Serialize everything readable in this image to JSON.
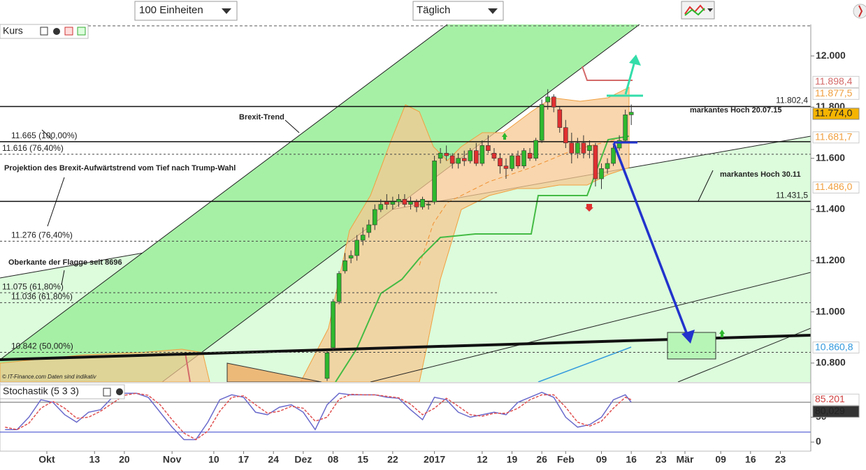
{
  "toolbar": {
    "units": "100 Einheiten",
    "period": "Täglich"
  },
  "x_axis": {
    "xlim": [
      -7.85,
      128.1
    ],
    "xticks": [
      {
        "value": 0,
        "label": "Okt"
      },
      {
        "value": 8,
        "label": "13"
      },
      {
        "value": 13,
        "label": "20"
      },
      {
        "value": 21,
        "label": "Nov"
      },
      {
        "value": 28,
        "label": "10"
      },
      {
        "value": 33,
        "label": "17"
      },
      {
        "value": 38,
        "label": "24"
      },
      {
        "value": 43,
        "label": "Dez"
      },
      {
        "value": 48,
        "label": "08"
      },
      {
        "value": 53,
        "label": "15"
      },
      {
        "value": 58,
        "label": "22"
      },
      {
        "value": 65,
        "label": "2017"
      },
      {
        "value": 73,
        "label": "12"
      },
      {
        "value": 78,
        "label": "19"
      },
      {
        "value": 83,
        "label": "26"
      },
      {
        "value": 87,
        "label": "Feb"
      },
      {
        "value": 93,
        "label": "09"
      },
      {
        "value": 98,
        "label": "16"
      },
      {
        "value": 103,
        "label": "23"
      },
      {
        "value": 107,
        "label": "Mär"
      },
      {
        "value": 113,
        "label": "09"
      },
      {
        "value": 118,
        "label": "16"
      },
      {
        "value": 123,
        "label": "23"
      }
    ]
  },
  "price_panel": {
    "title": "Kurs",
    "ylim": [
      10726,
      12123
    ],
    "yticks": [
      {
        "value": 10800,
        "label": "10.800"
      },
      {
        "value": 11000,
        "label": "11.000"
      },
      {
        "value": 11200,
        "label": "11.200"
      },
      {
        "value": 11400,
        "label": "11.400"
      },
      {
        "value": 11600,
        "label": "11.600"
      },
      {
        "value": 11800,
        "label": "11.800"
      },
      {
        "value": 12000,
        "label": "12.000"
      }
    ],
    "up_color": "#2eb82e",
    "down_color": "#e03030",
    "x": [
      47,
      48,
      49,
      50,
      51,
      52,
      53,
      54,
      55,
      56,
      57,
      58,
      59,
      60,
      61,
      62,
      63,
      64,
      65,
      66,
      67,
      68,
      69,
      70,
      71,
      72,
      73,
      74,
      75,
      76,
      77,
      78,
      79,
      80,
      81,
      82,
      83,
      84,
      85,
      86,
      87,
      88,
      89,
      90,
      91,
      92,
      93,
      94,
      95,
      96,
      97,
      98
    ],
    "ohlc": [
      [
        10740,
        10850,
        10730,
        10840
      ],
      [
        10860,
        11050,
        10850,
        11040
      ],
      [
        11040,
        11160,
        11030,
        11150
      ],
      [
        11160,
        11230,
        11150,
        11200
      ],
      [
        11210,
        11240,
        11190,
        11220
      ],
      [
        11220,
        11300,
        11200,
        11280
      ],
      [
        11280,
        11330,
        11260,
        11300
      ],
      [
        11310,
        11360,
        11290,
        11340
      ],
      [
        11340,
        11420,
        11320,
        11400
      ],
      [
        11400,
        11440,
        11390,
        11420
      ],
      [
        11430,
        11460,
        11400,
        11420
      ],
      [
        11420,
        11450,
        11400,
        11430
      ],
      [
        11430,
        11460,
        11410,
        11440
      ],
      [
        11440,
        11460,
        11410,
        11420
      ],
      [
        11420,
        11450,
        11400,
        11430
      ],
      [
        11430,
        11440,
        11390,
        11410
      ],
      [
        11410,
        11450,
        11400,
        11440
      ],
      [
        11420,
        11430,
        11400,
        11420
      ],
      [
        11430,
        11610,
        11420,
        11590
      ],
      [
        11600,
        11640,
        11580,
        11620
      ],
      [
        11620,
        11650,
        11590,
        11610
      ],
      [
        11610,
        11620,
        11560,
        11580
      ],
      [
        11580,
        11620,
        11560,
        11600
      ],
      [
        11600,
        11630,
        11570,
        11590
      ],
      [
        11590,
        11640,
        11580,
        11630
      ],
      [
        11630,
        11660,
        11570,
        11580
      ],
      [
        11580,
        11670,
        11570,
        11650
      ],
      [
        11650,
        11690,
        11620,
        11630
      ],
      [
        11620,
        11640,
        11590,
        11600
      ],
      [
        11600,
        11620,
        11540,
        11570
      ],
      [
        11570,
        11600,
        11520,
        11560
      ],
      [
        11560,
        11620,
        11550,
        11610
      ],
      [
        11610,
        11630,
        11560,
        11570
      ],
      [
        11570,
        11640,
        11560,
        11630
      ],
      [
        11620,
        11640,
        11590,
        11600
      ],
      [
        11600,
        11680,
        11590,
        11670
      ],
      [
        11670,
        11830,
        11660,
        11810
      ],
      [
        11820,
        11870,
        11790,
        11840
      ],
      [
        11840,
        11850,
        11780,
        11800
      ],
      [
        11790,
        11800,
        11700,
        11720
      ],
      [
        11720,
        11750,
        11640,
        11660
      ],
      [
        11660,
        11700,
        11580,
        11620
      ],
      [
        11620,
        11680,
        11600,
        11660
      ],
      [
        11660,
        11690,
        11600,
        11620
      ],
      [
        11630,
        11670,
        11600,
        11650
      ],
      [
        11650,
        11660,
        11490,
        11520
      ],
      [
        11520,
        11580,
        11480,
        11560
      ],
      [
        11560,
        11600,
        11540,
        11580
      ],
      [
        11580,
        11650,
        11570,
        11640
      ],
      [
        11640,
        11690,
        11630,
        11670
      ],
      [
        11670,
        11790,
        11660,
        11770
      ],
      [
        11770,
        11810,
        11730,
        11780
      ]
    ],
    "levels": [
      {
        "value": 11802.4,
        "label": "11.802,4",
        "align": "right",
        "style": "solid"
      },
      {
        "value": 11431.5,
        "label": "11.431,5",
        "align": "right",
        "style": "solid"
      },
      {
        "value": 11665,
        "label": "11.665 (100,00%)",
        "align": "left",
        "style": "solid"
      },
      {
        "value": 11616,
        "label": "11.616 (76,40%)",
        "align": "left",
        "style": "dashed"
      },
      {
        "value": 11276,
        "label": "11.276 (76,40%)",
        "align": "left",
        "style": "dashed"
      },
      {
        "value": 11075,
        "label": "11.075 (61,80%)",
        "align": "left",
        "style": "dashed"
      },
      {
        "value": 11036,
        "label": "11.036 (61,80%)",
        "align": "left",
        "style": "dashed"
      },
      {
        "value": 10842,
        "label": "10.842 (50,00%)",
        "align": "left",
        "style": "dashed"
      }
    ],
    "price_labels": [
      {
        "value": 11898.4,
        "label": "11.898,4",
        "color": "#d46a6a",
        "filled": false
      },
      {
        "value": 11877.5,
        "label": "11.877,5",
        "color": "#f0a040",
        "filled": false
      },
      {
        "value": 11774.0,
        "label": "11.774,0",
        "color": "#f5b400",
        "filled": true
      },
      {
        "value": 11681.7,
        "label": "11.681,7",
        "color": "#f0a040",
        "filled": false
      },
      {
        "value": 11486.0,
        "label": "11.486,0",
        "color": "#f0a040",
        "filled": false
      },
      {
        "value": 10860.8,
        "label": "10.860,8",
        "color": "#3399dd",
        "filled": false
      }
    ],
    "annotations": {
      "brexit_trend": "Brexit-Trend",
      "high_2015": "markantes Hoch 20.07.15",
      "projection": "Projektion des  Brexit-Aufwärtstrend vom Tief nach Trump-Wahl",
      "high_nov": "markantes Hoch 30.11",
      "flag": "Oberkante der Flagge seit 8696"
    },
    "copyright": "© IT-Finance.com  Daten sind indikativ"
  },
  "stoch_panel": {
    "title": "Stochastik (5 3 3)",
    "ylim": [
      -16.8,
      116.5
    ],
    "yticks": [
      0,
      50
    ],
    "levels": [
      80,
      20
    ],
    "x": [
      -7,
      -5,
      -3,
      -1,
      1,
      3,
      5,
      7,
      9,
      11,
      13,
      15,
      17,
      19,
      21,
      23,
      25,
      27,
      29,
      31,
      33,
      35,
      37,
      39,
      41,
      43,
      45,
      47,
      49,
      51,
      53,
      55,
      57,
      59,
      61,
      63,
      65,
      67,
      69,
      71,
      73,
      75,
      77,
      79,
      81,
      83,
      85,
      87,
      89,
      91,
      93,
      95,
      97,
      98
    ],
    "series": [
      {
        "color": "#6a6acc",
        "values": [
          25,
          25,
          50,
          85,
          80,
          55,
          40,
          60,
          65,
          90,
          98,
          98,
          90,
          60,
          30,
          5,
          5,
          40,
          85,
          95,
          90,
          60,
          55,
          70,
          75,
          60,
          25,
          75,
          98,
          95,
          95,
          95,
          90,
          88,
          65,
          45,
          90,
          85,
          60,
          50,
          55,
          60,
          55,
          80,
          90,
          100,
          90,
          50,
          30,
          35,
          50,
          85,
          95,
          80.029
        ]
      },
      {
        "color": "#e05050",
        "values": [
          30,
          25,
          38,
          68,
          82,
          68,
          48,
          50,
          62,
          78,
          94,
          98,
          94,
          75,
          45,
          18,
          5,
          22,
          62,
          90,
          93,
          75,
          58,
          62,
          72,
          68,
          42,
          50,
          86,
          96,
          95,
          95,
          92,
          89,
          76,
          55,
          68,
          88,
          72,
          55,
          52,
          58,
          58,
          68,
          85,
          95,
          95,
          70,
          40,
          32,
          42,
          68,
          90,
          85.201
        ]
      }
    ],
    "value_labels": [
      {
        "value": 85.201,
        "label": "85.201",
        "color": "#d04040",
        "filled": false
      },
      {
        "value": 80.029,
        "label": "80,029",
        "color": "#333333",
        "filled": true
      }
    ]
  }
}
